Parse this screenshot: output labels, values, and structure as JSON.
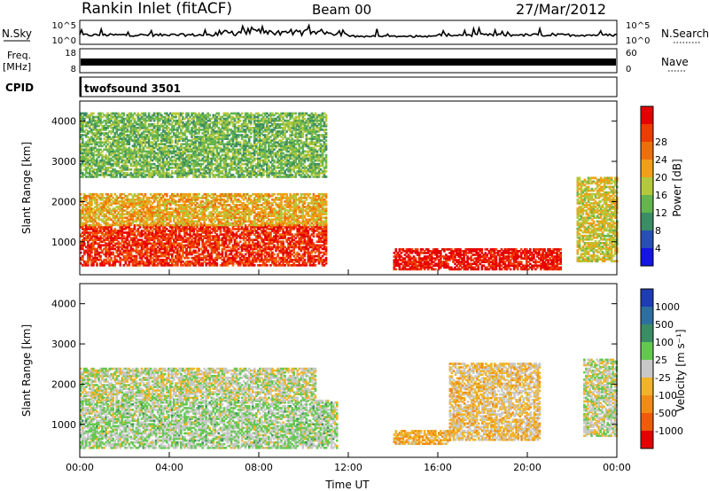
{
  "header": {
    "station": "Rankin Inlet (fitACF)",
    "beam": "Beam 00",
    "date": "27/Mar/2012"
  },
  "noise_panel": {
    "left_label": "N.Sky",
    "right_label": "N.Search",
    "left_ticks": [
      "10^5",
      "10^0"
    ],
    "right_ticks": [
      "10^5",
      "10^0"
    ]
  },
  "freq_panel": {
    "left_label_1": "Freq.",
    "left_label_2": "[MHz]",
    "right_label": "Nave",
    "left_ticks": [
      "18",
      "8"
    ],
    "right_ticks": [
      "60",
      "0"
    ]
  },
  "cpid_panel": {
    "label": "CPID",
    "program": "twofsound 3501"
  },
  "x_axis": {
    "label": "Time UT",
    "ticks": [
      "00:00",
      "04:00",
      "08:00",
      "12:00",
      "16:00",
      "20:00",
      "00:00"
    ]
  },
  "power_panel": {
    "ylabel": "Slant Range [km]",
    "yticks": [
      "1000",
      "2000",
      "3000",
      "4000"
    ],
    "colorbar_label": "Power [dB]",
    "colorbar_ticks": [
      "4",
      "8",
      "12",
      "16",
      "20",
      "24",
      "28"
    ],
    "colors": [
      "#1414e6",
      "#2850b4",
      "#3c8c64",
      "#64b450",
      "#b4c83c",
      "#f0a014",
      "#f06e0a",
      "#f03c00",
      "#e60000"
    ]
  },
  "velocity_panel": {
    "ylabel": "Slant Range [km]",
    "yticks": [
      "1000",
      "2000",
      "3000",
      "4000"
    ],
    "colorbar_label": "Velocity [m s⁻¹]",
    "colorbar_ticks": [
      "1000",
      "500",
      "100",
      "25",
      "-25",
      "-100",
      "-500",
      "-1000"
    ],
    "colors": [
      "#1e3cb4",
      "#2e6ea0",
      "#3c8c64",
      "#64c850",
      "#c8c8c8",
      "#f0b428",
      "#f08c14",
      "#f05a0a",
      "#e60000"
    ]
  },
  "chart_data": [
    {
      "type": "heatmap",
      "title": "Power",
      "xlabel": "Time UT",
      "ylabel": "Slant Range [km]",
      "xlim": [
        "00:00",
        "24:00"
      ],
      "ylim": [
        180,
        4500
      ],
      "zlabel": "Power [dB]",
      "zlim": [
        0,
        30
      ],
      "regions": [
        {
          "t": [
            0,
            11
          ],
          "range": [
            400,
            1400
          ],
          "power": 26
        },
        {
          "t": [
            0,
            11
          ],
          "range": [
            1400,
            2200
          ],
          "power": 18
        },
        {
          "t": [
            0,
            11
          ],
          "range": [
            2600,
            4200
          ],
          "power": 12
        },
        {
          "t": [
            14,
            21.5
          ],
          "range": [
            300,
            800
          ],
          "power": 28
        },
        {
          "t": [
            22.2,
            24
          ],
          "range": [
            500,
            2600
          ],
          "power": 16
        }
      ]
    },
    {
      "type": "heatmap",
      "title": "Velocity",
      "xlabel": "Time UT",
      "ylabel": "Slant Range [km]",
      "xlim": [
        "00:00",
        "24:00"
      ],
      "ylim": [
        180,
        4500
      ],
      "zlabel": "Velocity [m s-1]",
      "zlim": [
        -1000,
        1000
      ],
      "regions": [
        {
          "t": [
            0,
            11.5
          ],
          "range": [
            400,
            1600
          ],
          "velocity": 100
        },
        {
          "t": [
            0,
            10.5
          ],
          "range": [
            1600,
            2400
          ],
          "velocity": 0
        },
        {
          "t": [
            14,
            16.5
          ],
          "range": [
            500,
            850
          ],
          "velocity": -300
        },
        {
          "t": [
            16.5,
            20.5
          ],
          "range": [
            600,
            2500
          ],
          "velocity": -150
        },
        {
          "t": [
            22.5,
            24
          ],
          "range": [
            700,
            2600
          ],
          "velocity": 0
        }
      ]
    }
  ]
}
